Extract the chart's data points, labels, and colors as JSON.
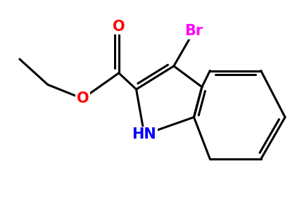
{
  "background_color": "#ffffff",
  "bond_color": "#000000",
  "bond_width": 2.2,
  "atoms": {
    "Br": {
      "color": "#ff00ff",
      "fontsize": 15,
      "fontweight": "bold"
    },
    "O_carbonyl": {
      "color": "#ff0000",
      "fontsize": 15,
      "fontweight": "bold"
    },
    "O_ester": {
      "color": "#ff0000",
      "fontsize": 15,
      "fontweight": "bold"
    },
    "N": {
      "color": "#0000ff",
      "fontsize": 15,
      "fontweight": "bold"
    }
  },
  "xlim": [
    0,
    10
  ],
  "ylim": [
    0,
    7.5
  ]
}
